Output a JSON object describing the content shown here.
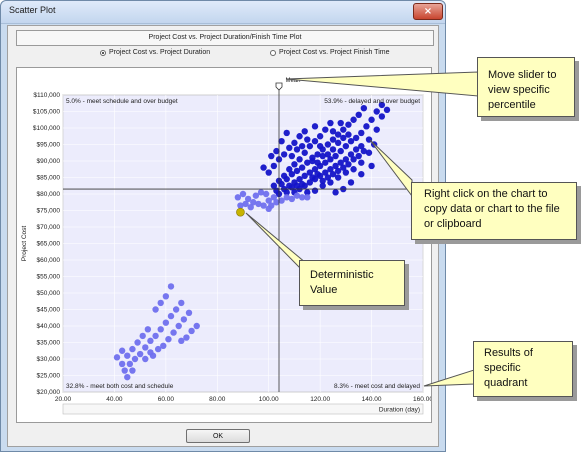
{
  "window": {
    "title": "Scatter Plot",
    "close_symbol": "×"
  },
  "plot_title": "Project Cost vs. Project Duration/Finish Time Plot",
  "radio_options": [
    {
      "label": "Project Cost vs. Project Duration",
      "selected": true
    },
    {
      "label": "Project Cost vs. Project Finish Time",
      "selected": false
    }
  ],
  "ok_label": "OK",
  "colors": {
    "cloud_dark": "#1414c8",
    "cloud_light": "#7070ee",
    "deterministic": "#c8b400",
    "plot_bg": "#ececfc"
  },
  "callouts": {
    "slider": "Move slider to view specific percentile",
    "right_click": "Right click on the chart to copy data or chart to the file or clipboard",
    "deterministic": "Deterministic Value",
    "quadrant": "Results of specific quadrant"
  },
  "chart_data": {
    "type": "scatter",
    "xlabel": "Duration (day)",
    "ylabel": "Project Cost",
    "xlim": [
      20,
      160
    ],
    "ylim": [
      20000,
      110000
    ],
    "x_ticks": [
      "20.00",
      "40.00",
      "60.00",
      "80.00",
      "100.00",
      "120.00",
      "140.00",
      "160.00"
    ],
    "y_ticks": [
      "$20,000",
      "$25,000",
      "$30,000",
      "$35,000",
      "$40,000",
      "$45,000",
      "$50,000",
      "$55,000",
      "$60,000",
      "$65,000",
      "$70,000",
      "$75,000",
      "$80,000",
      "$85,000",
      "$90,000",
      "$95,000",
      "$100,000",
      "$105,000",
      "$110,000"
    ],
    "mean_label": "Mean",
    "mean_x": 104,
    "mean_y": 81500,
    "quadrant_labels": {
      "top_left": "5.0% - meet schedule and over budget",
      "top_right": "53.9% - delayed and over budget",
      "bottom_left": "32.8% - meet both cost and schedule",
      "bottom_right": "8.3% - meet cost and delayed"
    },
    "deterministic_point": {
      "x": 89,
      "y": 74500
    },
    "series": [
      {
        "values": [
          [
            104,
            80000
          ],
          [
            106,
            81500
          ],
          [
            108,
            82500
          ],
          [
            110,
            83500
          ],
          [
            112,
            84500
          ],
          [
            114,
            85500
          ],
          [
            116,
            86500
          ],
          [
            118,
            87500
          ],
          [
            120,
            88500
          ],
          [
            122,
            89500
          ],
          [
            124,
            90500
          ],
          [
            126,
            91500
          ],
          [
            128,
            93000
          ],
          [
            130,
            94500
          ],
          [
            132,
            96000
          ],
          [
            134,
            97000
          ],
          [
            136,
            98500
          ],
          [
            138,
            100500
          ],
          [
            140,
            102500
          ],
          [
            142,
            105000
          ],
          [
            144,
            107000
          ],
          [
            105,
            83000
          ],
          [
            107,
            84500
          ],
          [
            109,
            86000
          ],
          [
            111,
            87000
          ],
          [
            113,
            88000
          ],
          [
            115,
            89500
          ],
          [
            117,
            91000
          ],
          [
            119,
            92000
          ],
          [
            121,
            93500
          ],
          [
            123,
            95000
          ],
          [
            125,
            96500
          ],
          [
            127,
            98000
          ],
          [
            129,
            99500
          ],
          [
            131,
            101000
          ],
          [
            133,
            102500
          ],
          [
            135,
            104000
          ],
          [
            137,
            106000
          ],
          [
            102,
            82500
          ],
          [
            104,
            84000
          ],
          [
            106,
            85500
          ],
          [
            108,
            87500
          ],
          [
            110,
            89000
          ],
          [
            112,
            90500
          ],
          [
            114,
            92500
          ],
          [
            116,
            94500
          ],
          [
            118,
            96000
          ],
          [
            120,
            97500
          ],
          [
            122,
            99500
          ],
          [
            124,
            101500
          ],
          [
            110,
            80500
          ],
          [
            112,
            81500
          ],
          [
            114,
            82500
          ],
          [
            116,
            83500
          ],
          [
            118,
            84500
          ],
          [
            120,
            85500
          ],
          [
            122,
            86500
          ],
          [
            124,
            87500
          ],
          [
            126,
            88500
          ],
          [
            128,
            89500
          ],
          [
            130,
            90500
          ],
          [
            132,
            92000
          ],
          [
            134,
            93500
          ],
          [
            136,
            94500
          ],
          [
            115,
            80500
          ],
          [
            118,
            81000
          ],
          [
            121,
            82500
          ],
          [
            124,
            83500
          ],
          [
            127,
            85000
          ],
          [
            130,
            86500
          ],
          [
            133,
            87500
          ],
          [
            136,
            89500
          ],
          [
            139,
            92500
          ],
          [
            141,
            95000
          ],
          [
            100,
            86500
          ],
          [
            102,
            88500
          ],
          [
            104,
            90500
          ],
          [
            106,
            92000
          ],
          [
            108,
            94000
          ],
          [
            110,
            95500
          ],
          [
            112,
            97500
          ],
          [
            114,
            99000
          ],
          [
            103,
            93000
          ],
          [
            105,
            96000
          ],
          [
            107,
            98500
          ],
          [
            98,
            88000
          ],
          [
            101,
            91500
          ],
          [
            126,
            80500
          ],
          [
            129,
            81500
          ],
          [
            132,
            83500
          ],
          [
            136,
            86000
          ],
          [
            140,
            88500
          ],
          [
            120,
            94500
          ],
          [
            125,
            99000
          ],
          [
            128,
            101500
          ],
          [
            118,
            100500
          ],
          [
            115,
            96500
          ],
          [
            111,
            93500
          ],
          [
            109,
            91500
          ],
          [
            113,
            94500
          ],
          [
            117,
            90000
          ],
          [
            119,
            89500
          ],
          [
            121,
            91500
          ],
          [
            123,
            92000
          ],
          [
            125,
            93500
          ],
          [
            127,
            95500
          ],
          [
            129,
            97000
          ],
          [
            131,
            98000
          ],
          [
            119,
            86000
          ],
          [
            117,
            85000
          ],
          [
            121,
            84000
          ],
          [
            123,
            85000
          ],
          [
            125,
            86000
          ],
          [
            127,
            87000
          ],
          [
            129,
            88000
          ],
          [
            131,
            89000
          ],
          [
            133,
            90500
          ],
          [
            135,
            91500
          ],
          [
            137,
            93000
          ],
          [
            139,
            96500
          ],
          [
            142,
            99500
          ],
          [
            144,
            103500
          ],
          [
            146,
            105500
          ],
          [
            109,
            82000
          ],
          [
            111,
            82500
          ],
          [
            113,
            83000
          ],
          [
            107,
            80500
          ],
          [
            103,
            81000
          ]
        ]
      },
      {
        "values": [
          [
            90,
            80000
          ],
          [
            92,
            78500
          ],
          [
            94,
            77500
          ],
          [
            96,
            77000
          ],
          [
            98,
            76500
          ],
          [
            100,
            78000
          ],
          [
            102,
            79000
          ],
          [
            95,
            79500
          ],
          [
            97,
            80500
          ],
          [
            99,
            80000
          ],
          [
            93,
            76000
          ],
          [
            91,
            77000
          ],
          [
            88,
            79000
          ],
          [
            89,
            76500
          ],
          [
            101,
            76500
          ],
          [
            103,
            77500
          ],
          [
            100,
            75500
          ],
          [
            105,
            78000
          ],
          [
            107,
            79000
          ],
          [
            109,
            78500
          ],
          [
            111,
            79500
          ],
          [
            113,
            79000
          ],
          [
            115,
            79000
          ]
        ]
      },
      {
        "values": [
          [
            44,
            26500
          ],
          [
            46,
            28500
          ],
          [
            48,
            30000
          ],
          [
            50,
            31500
          ],
          [
            52,
            33500
          ],
          [
            54,
            35500
          ],
          [
            56,
            37000
          ],
          [
            58,
            39000
          ],
          [
            60,
            41000
          ],
          [
            62,
            43000
          ],
          [
            64,
            45000
          ],
          [
            66,
            47000
          ],
          [
            55,
            31000
          ],
          [
            57,
            33000
          ],
          [
            59,
            34000
          ],
          [
            61,
            36000
          ],
          [
            63,
            38000
          ],
          [
            65,
            40000
          ],
          [
            67,
            42000
          ],
          [
            69,
            44000
          ],
          [
            45,
            31000
          ],
          [
            47,
            33000
          ],
          [
            49,
            35000
          ],
          [
            51,
            37000
          ],
          [
            53,
            39000
          ],
          [
            45,
            24500
          ],
          [
            47,
            26500
          ],
          [
            43,
            28500
          ],
          [
            41,
            30500
          ],
          [
            43,
            32500
          ],
          [
            56,
            45000
          ],
          [
            58,
            47000
          ],
          [
            60,
            49000
          ],
          [
            62,
            52000
          ],
          [
            70,
            38500
          ],
          [
            72,
            40000
          ],
          [
            68,
            36500
          ],
          [
            52,
            30000
          ],
          [
            54,
            32000
          ],
          [
            66,
            35500
          ]
        ]
      }
    ]
  }
}
